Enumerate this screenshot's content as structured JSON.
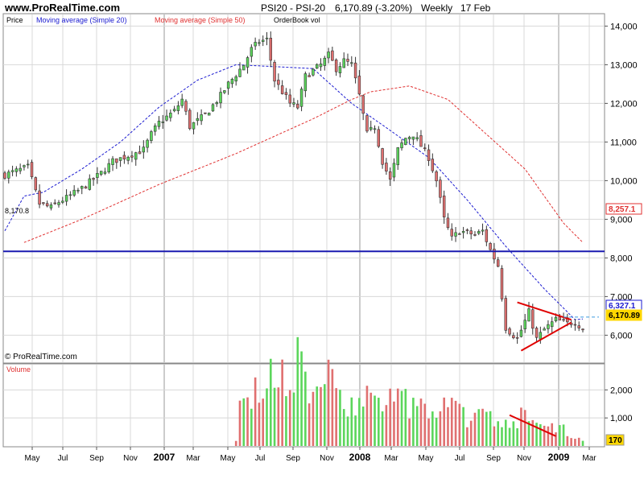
{
  "header": {
    "site": "www.ProRealTime.com",
    "instrument": "PSI20 - PSI-20",
    "last_change": "6,170.89 (-3.20%)",
    "period": "Weekly",
    "date": "17 Feb"
  },
  "legend": {
    "price": "Price",
    "sma20": "Moving average (Simple 20)",
    "sma50": "Moving average (Simple 50)",
    "orderbook": "OrderBook vol"
  },
  "volume_panel": {
    "label": "Volume"
  },
  "footer": {
    "copyright": "© ProRealTime.com"
  },
  "colors": {
    "up": "#5cd65c",
    "down": "#e07070",
    "sma20": "#1a1ad0",
    "sma50": "#e03030",
    "hline": "#1a1ab0",
    "trend": "#e00000",
    "grid": "#d8d8d8",
    "badge_yellow": "#ffd700"
  },
  "chart_data": {
    "type": "candlestick",
    "title": "PSI20 - PSI-20",
    "price_axis": {
      "ylim": [
        5300,
        14300
      ],
      "ticks": [
        "14,000",
        "13,000",
        "12,000",
        "11,000",
        "10,000",
        "9,000",
        "8,000",
        "7,000",
        "6,000"
      ]
    },
    "volume_axis": {
      "ylim": [
        0,
        2900
      ],
      "ticks": [
        "2,000",
        "1,000"
      ]
    },
    "x_tick_labels": [
      "May",
      "Jul",
      "Sep",
      "Nov",
      "2007",
      "Mar",
      "May",
      "Jul",
      "Sep",
      "Nov",
      "2008",
      "Mar",
      "May",
      "Jul",
      "Sep",
      "Nov",
      "2009",
      "Mar"
    ],
    "x_tick_years": [
      "2007",
      "2008",
      "2009"
    ],
    "horizontal_line": {
      "value": 8170.8,
      "label": "8,170.8"
    },
    "price_badges": [
      {
        "label": "8,257.1",
        "value": 8257.1,
        "color": "#e03030",
        "role": "sma50"
      },
      {
        "label": "6,327.1",
        "value": 6327.1,
        "color": "#1a1ad0",
        "role": "sma20"
      },
      {
        "label": "6,170.89",
        "value": 6170.89,
        "color": "#ffd700",
        "role": "last"
      }
    ],
    "volume_badge": {
      "label": "170",
      "value": 170
    },
    "sma20_anchors": [
      [
        0,
        8700
      ],
      [
        5,
        9600
      ],
      [
        10,
        9700
      ],
      [
        20,
        10300
      ],
      [
        30,
        11000
      ],
      [
        40,
        11900
      ],
      [
        50,
        12600
      ],
      [
        60,
        13000
      ],
      [
        70,
        12950
      ],
      [
        80,
        12900
      ],
      [
        90,
        12000
      ],
      [
        100,
        11300
      ],
      [
        110,
        10600
      ],
      [
        120,
        9500
      ],
      [
        130,
        8300
      ],
      [
        140,
        7200
      ],
      [
        148,
        6400
      ],
      [
        150,
        6420
      ]
    ],
    "sma50_anchors": [
      [
        5,
        8400
      ],
      [
        20,
        9000
      ],
      [
        40,
        9900
      ],
      [
        60,
        10700
      ],
      [
        80,
        11600
      ],
      [
        90,
        12100
      ],
      [
        95,
        12300
      ],
      [
        105,
        12450
      ],
      [
        115,
        12100
      ],
      [
        125,
        11200
      ],
      [
        135,
        10300
      ],
      [
        145,
        8900
      ],
      [
        150,
        8400
      ]
    ],
    "trendlines": [
      {
        "points": [
          [
            133,
            6850
          ],
          [
            147,
            6400
          ]
        ]
      },
      {
        "points": [
          [
            134,
            5600
          ],
          [
            147,
            6330
          ]
        ]
      }
    ],
    "volume_trendline": {
      "points": [
        [
          131,
          1100
        ],
        [
          143,
          350
        ]
      ]
    },
    "price_path": [
      [
        0,
        10150
      ],
      [
        6,
        10350
      ],
      [
        8,
        9700
      ],
      [
        9,
        9400
      ],
      [
        12,
        9300
      ],
      [
        14,
        9450
      ],
      [
        16,
        9550
      ],
      [
        20,
        9800
      ],
      [
        25,
        10200
      ],
      [
        28,
        10500
      ],
      [
        32,
        10650
      ],
      [
        36,
        10800
      ],
      [
        38,
        11200
      ],
      [
        40,
        11500
      ],
      [
        44,
        11800
      ],
      [
        46,
        12100
      ],
      [
        48,
        11400
      ],
      [
        52,
        11700
      ],
      [
        56,
        12200
      ],
      [
        58,
        12500
      ],
      [
        62,
        13000
      ],
      [
        64,
        13400
      ],
      [
        66,
        13600
      ],
      [
        68,
        13650
      ],
      [
        70,
        12600
      ],
      [
        72,
        12300
      ],
      [
        74,
        12000
      ],
      [
        76,
        11900
      ],
      [
        78,
        12700
      ],
      [
        82,
        13000
      ],
      [
        84,
        13250
      ],
      [
        86,
        12900
      ],
      [
        88,
        13100
      ],
      [
        90,
        13000
      ],
      [
        92,
        12200
      ],
      [
        94,
        11200
      ],
      [
        96,
        11400
      ],
      [
        98,
        10500
      ],
      [
        100,
        10000
      ],
      [
        102,
        10800
      ],
      [
        104,
        11100
      ],
      [
        106,
        11200
      ],
      [
        108,
        10900
      ],
      [
        110,
        10600
      ],
      [
        112,
        10000
      ],
      [
        114,
        9000
      ],
      [
        116,
        8500
      ],
      [
        118,
        8700
      ],
      [
        122,
        8600
      ],
      [
        124,
        8700
      ],
      [
        126,
        8200
      ],
      [
        128,
        7800
      ],
      [
        130,
        6200
      ],
      [
        133,
        5900
      ],
      [
        136,
        6600
      ],
      [
        138,
        5900
      ],
      [
        140,
        6150
      ],
      [
        143,
        6400
      ],
      [
        146,
        6300
      ],
      [
        148,
        6350
      ],
      [
        150,
        6170
      ]
    ],
    "volume_profile": [
      [
        0,
        0
      ],
      [
        59,
        0
      ],
      [
        60,
        300
      ],
      [
        61,
        1300
      ],
      [
        66,
        1900
      ],
      [
        70,
        2400
      ],
      [
        76,
        2800
      ],
      [
        80,
        2000
      ],
      [
        84,
        2200
      ],
      [
        88,
        1800
      ],
      [
        92,
        1500
      ],
      [
        96,
        1900
      ],
      [
        100,
        1500
      ],
      [
        104,
        1500
      ],
      [
        110,
        1300
      ],
      [
        116,
        1300
      ],
      [
        120,
        1100
      ],
      [
        124,
        1000
      ],
      [
        128,
        900
      ],
      [
        130,
        1000
      ],
      [
        134,
        1000
      ],
      [
        140,
        700
      ],
      [
        144,
        600
      ],
      [
        148,
        400
      ],
      [
        150,
        170
      ]
    ],
    "weeks": 151
  }
}
